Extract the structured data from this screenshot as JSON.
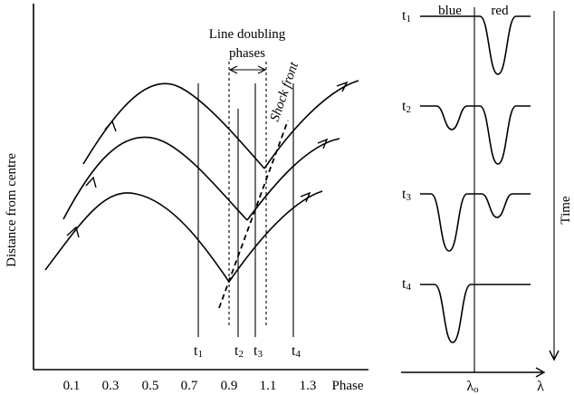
{
  "left_panel": {
    "y_label": "Distance from centre",
    "x_label": "Phase",
    "phase_ticks": [
      "0.1",
      "0.3",
      "0.5",
      "0.7",
      "0.9",
      "1.1",
      "1.3"
    ],
    "line_doubling_label_1": "Line doubling",
    "line_doubling_label_2": "phases",
    "shock_front_label": "Shock front",
    "time_markers": [
      {
        "base": "t",
        "sub": "1"
      },
      {
        "base": "t",
        "sub": "2"
      },
      {
        "base": "t",
        "sub": "3"
      },
      {
        "base": "t",
        "sub": "4"
      }
    ]
  },
  "right_panel": {
    "blue_label": "blue",
    "red_label": "red",
    "rest_wavelength_base": "λ",
    "rest_wavelength_sub": "o",
    "wavelength_axis_label": "λ",
    "time_axis_label": "Time",
    "profiles": [
      {
        "base": "t",
        "sub": "1"
      },
      {
        "base": "t",
        "sub": "2"
      },
      {
        "base": "t",
        "sub": "3"
      },
      {
        "base": "t",
        "sub": "4"
      }
    ]
  }
}
